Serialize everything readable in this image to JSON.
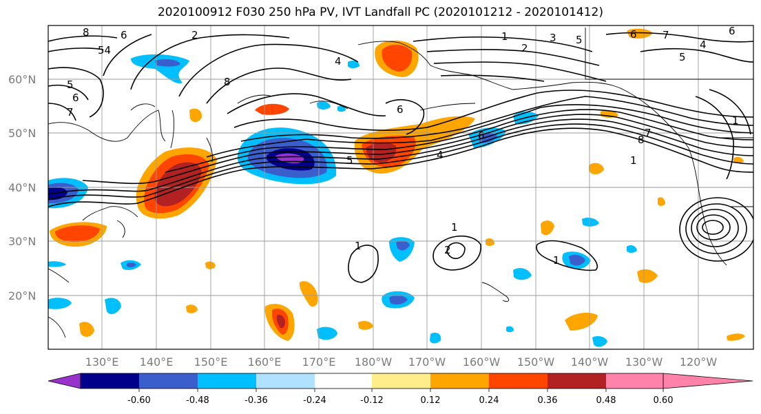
{
  "title": "2020100912 F030 250 hPa PV, IVT Landfall PC (2020101212 - 2020101412)",
  "lat_labels": [
    "60°N",
    "50°N",
    "40°N",
    "30°N",
    "20°N"
  ],
  "lon_labels": [
    "130°E",
    "140°E",
    "150°E",
    "160°E",
    "170°E",
    "180°W",
    "170°W",
    "160°W",
    "150°W",
    "140°W",
    "130°W",
    "120°W"
  ],
  "colorbar": {
    "colors": [
      "#9932cc",
      "#00008b",
      "#3a5fcd",
      "#00bfff",
      "#b0e2ff",
      "#ffffff",
      "#ffec8b",
      "#ffa500",
      "#ff4500",
      "#b22222",
      "#ff82ab"
    ],
    "tick_labels": [
      "-0.60",
      "-0.48",
      "-0.36",
      "-0.24",
      "-0.12",
      "0.12",
      "0.24",
      "0.36",
      "0.48",
      "0.60"
    ]
  },
  "contour_labels": [
    "8",
    "6",
    "2",
    "54",
    "5",
    "6",
    "7",
    "4",
    "8",
    "1",
    "2",
    "3",
    "5",
    "6",
    "4",
    "5",
    "7",
    "6",
    "6",
    "5",
    "4",
    "6",
    "8",
    "7",
    "1",
    "1",
    "1",
    "1",
    "1",
    "2"
  ]
}
